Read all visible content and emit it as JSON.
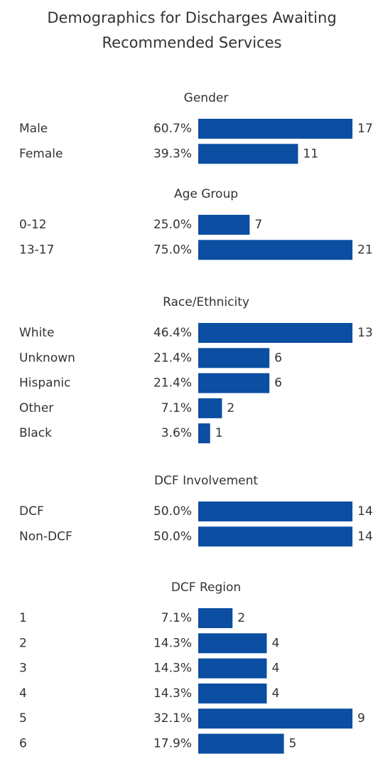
{
  "title": "Demographics for Discharges Awaiting Recommended Services",
  "chart_data": [
    {
      "type": "bar",
      "title": "Gender",
      "categories": [
        "Male",
        "Female"
      ],
      "values": [
        17,
        11
      ],
      "percent_labels": [
        "60.7%",
        "39.3%"
      ],
      "color": "#0b4ea2",
      "xlim": [
        0,
        17
      ]
    },
    {
      "type": "bar",
      "title": "Age Group",
      "categories": [
        "0-12",
        "13-17"
      ],
      "values": [
        7,
        21
      ],
      "percent_labels": [
        "25.0%",
        "75.0%"
      ],
      "color": "#0b4ea2",
      "xlim": [
        0,
        21
      ]
    },
    {
      "type": "bar",
      "title": "Race/Ethnicity",
      "categories": [
        "White",
        "Unknown",
        "Hispanic",
        "Other",
        "Black"
      ],
      "values": [
        13,
        6,
        6,
        2,
        1
      ],
      "percent_labels": [
        "46.4%",
        "21.4%",
        "21.4%",
        "7.1%",
        "3.6%"
      ],
      "color": "#0b4ea2",
      "xlim": [
        0,
        13
      ]
    },
    {
      "type": "bar",
      "title": "DCF Involvement",
      "categories": [
        "DCF",
        "Non-DCF"
      ],
      "values": [
        14,
        14
      ],
      "percent_labels": [
        "50.0%",
        "50.0%"
      ],
      "color": "#0b4ea2",
      "xlim": [
        0,
        14
      ]
    },
    {
      "type": "bar",
      "title": "DCF Region",
      "categories": [
        "1",
        "2",
        "3",
        "4",
        "5",
        "6"
      ],
      "values": [
        2,
        4,
        4,
        4,
        9,
        5
      ],
      "percent_labels": [
        "7.1%",
        "14.3%",
        "14.3%",
        "14.3%",
        "32.1%",
        "17.9%"
      ],
      "color": "#0b4ea2",
      "xlim": [
        0,
        9
      ]
    }
  ]
}
